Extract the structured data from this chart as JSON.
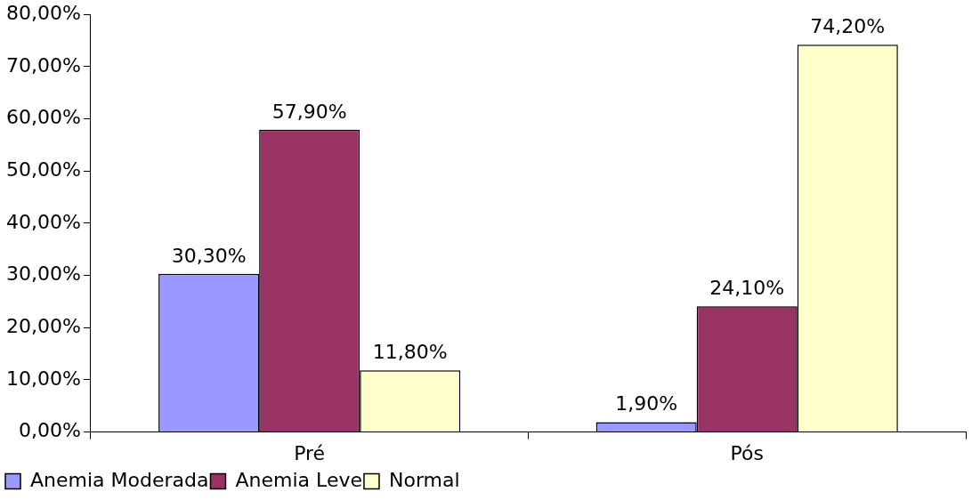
{
  "chart_data": {
    "type": "bar",
    "categories": [
      "Pré",
      "Pós"
    ],
    "series": [
      {
        "name": "Anemia Moderada",
        "color": "#9999ff",
        "values": [
          30.3,
          1.9
        ],
        "value_labels": [
          "30,30%",
          "1,90%"
        ]
      },
      {
        "name": "Anemia Leve",
        "color": "#993366",
        "values": [
          57.9,
          24.1
        ],
        "value_labels": [
          "57,90%",
          "24,10%"
        ]
      },
      {
        "name": "Normal",
        "color": "#ffffcc",
        "values": [
          11.8,
          74.2
        ],
        "value_labels": [
          "11,80%",
          "74,20%"
        ]
      }
    ],
    "ylim": [
      0,
      80
    ],
    "yticks": [
      {
        "value": 0,
        "label": "0,00%"
      },
      {
        "value": 10,
        "label": "10,00%"
      },
      {
        "value": 20,
        "label": "20,00%"
      },
      {
        "value": 30,
        "label": "30,00%"
      },
      {
        "value": 40,
        "label": "40,00%"
      },
      {
        "value": 50,
        "label": "50,00%"
      },
      {
        "value": 60,
        "label": "60,00%"
      },
      {
        "value": 70,
        "label": "70,00%"
      },
      {
        "value": 80,
        "label": "80,00%"
      }
    ],
    "grid": false,
    "legend": "bottom"
  }
}
